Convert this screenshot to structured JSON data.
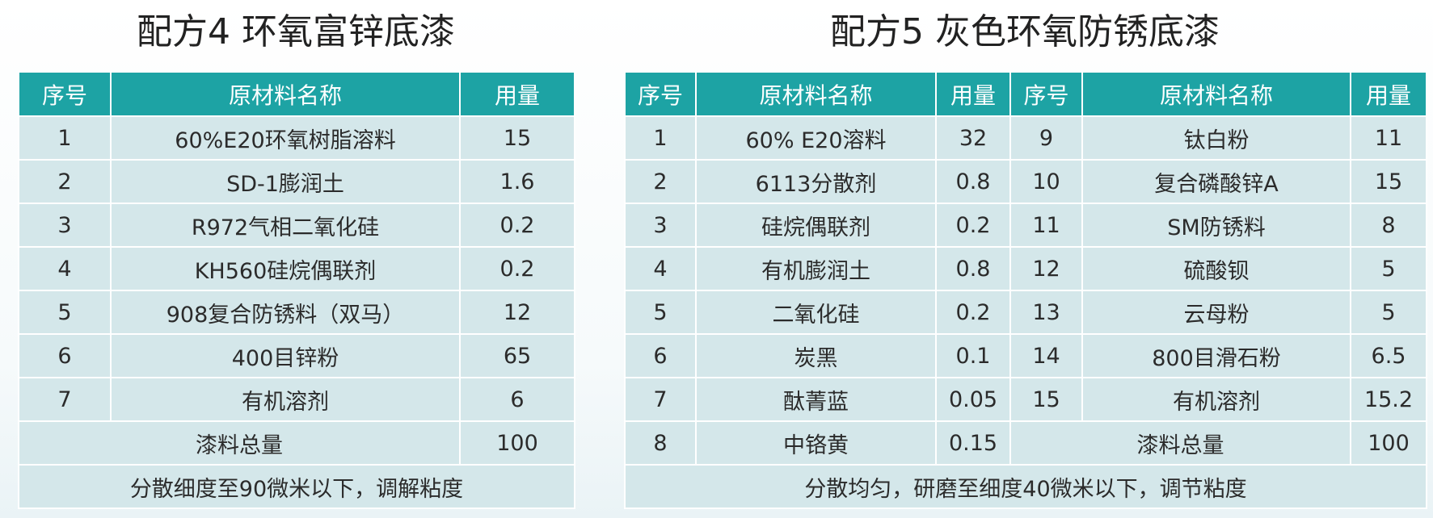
{
  "formula4": {
    "title": "配方4  环氧富锌底漆",
    "headers": {
      "no": "序号",
      "material": "原材料名称",
      "amount": "用量"
    },
    "rows": [
      {
        "no": "1",
        "material": "60%E20环氧树脂溶料",
        "amount": "15"
      },
      {
        "no": "2",
        "material": "SD-1膨润土",
        "amount": "1.6"
      },
      {
        "no": "3",
        "material": "R972气相二氧化硅",
        "amount": "0.2"
      },
      {
        "no": "4",
        "material": "KH560硅烷偶联剂",
        "amount": "0.2"
      },
      {
        "no": "5",
        "material": "908复合防锈料（双马）",
        "amount": "12"
      },
      {
        "no": "6",
        "material": "400目锌粉",
        "amount": "65"
      },
      {
        "no": "7",
        "material": "有机溶剂",
        "amount": "6"
      }
    ],
    "total_label": "漆料总量",
    "total_value": "100",
    "note": "分散细度至90微米以下，调解粘度"
  },
  "formula5": {
    "title": "配方5  灰色环氧防锈底漆",
    "headers": {
      "no": "序号",
      "material": "原材料名称",
      "amount": "用量"
    },
    "rows": [
      {
        "no": "1",
        "material": "60% E20溶料",
        "amount": "32",
        "no2": "9",
        "material2": "钛白粉",
        "amount2": "11"
      },
      {
        "no": "2",
        "material": "6113分散剂",
        "amount": "0.8",
        "no2": "10",
        "material2": "复合磷酸锌A",
        "amount2": "15"
      },
      {
        "no": "3",
        "material": "硅烷偶联剂",
        "amount": "0.2",
        "no2": "11",
        "material2": "SM防锈料",
        "amount2": "8"
      },
      {
        "no": "4",
        "material": "有机膨润土",
        "amount": "0.8",
        "no2": "12",
        "material2": "硫酸钡",
        "amount2": "5"
      },
      {
        "no": "5",
        "material": "二氧化硅",
        "amount": "0.2",
        "no2": "13",
        "material2": "云母粉",
        "amount2": "5"
      },
      {
        "no": "6",
        "material": "炭黑",
        "amount": "0.1",
        "no2": "14",
        "material2": "800目滑石粉",
        "amount2": "6.5"
      },
      {
        "no": "7",
        "material": "酞菁蓝",
        "amount": "0.05",
        "no2": "15",
        "material2": "有机溶剂",
        "amount2": "15.2"
      }
    ],
    "row8": {
      "no": "8",
      "material": "中铬黄",
      "amount": "0.15"
    },
    "total_label": "漆料总量",
    "total_value": "100",
    "note": "分散均匀，研磨至细度40微米以下，调节粘度"
  },
  "colors": {
    "header_bg": "#1da3a4",
    "cell_bg": "#d4e7ea",
    "border": "#ffffff"
  }
}
